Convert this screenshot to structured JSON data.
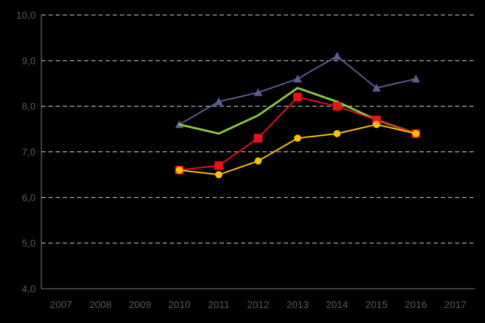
{
  "chart_data": {
    "type": "line",
    "title": "",
    "xlabel": "",
    "ylabel": "",
    "categories": [
      "2007",
      "2008",
      "2009",
      "2010",
      "2011",
      "2012",
      "2013",
      "2014",
      "2015",
      "2016",
      "2017"
    ],
    "y_tick_labels": [
      "4,0",
      "5,0",
      "6,0",
      "7,0",
      "8,0",
      "9,0",
      "10,0"
    ],
    "ylim": [
      4,
      10
    ],
    "y_ticks": [
      4,
      5,
      6,
      7,
      8,
      9,
      10
    ],
    "grid": true,
    "legend": "none",
    "series": [
      {
        "marker": "triangle",
        "color": "#5b5b8f",
        "values": [
          null,
          null,
          null,
          7.6,
          8.1,
          8.3,
          8.6,
          9.1,
          8.4,
          8.6,
          null
        ]
      },
      {
        "marker": "none",
        "color": "#8cc63f",
        "values": [
          null,
          null,
          null,
          7.6,
          7.4,
          7.8,
          8.4,
          8.1,
          7.7,
          7.4,
          null
        ]
      },
      {
        "marker": "square",
        "color": "#e8121c",
        "values": [
          null,
          null,
          null,
          6.6,
          6.7,
          7.3,
          8.2,
          8.0,
          7.7,
          7.4,
          null
        ]
      },
      {
        "marker": "circle",
        "color": "#ffc000",
        "values": [
          null,
          null,
          null,
          6.6,
          6.5,
          6.8,
          7.3,
          7.4,
          7.6,
          7.4,
          null
        ]
      }
    ]
  }
}
